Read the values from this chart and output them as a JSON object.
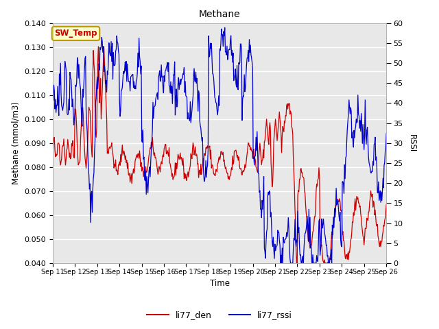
{
  "title": "Methane",
  "ylabel_left": "Methane (mmol/m3)",
  "ylabel_right": "RSSI",
  "xlabel": "Time",
  "ylim_left": [
    0.04,
    0.14
  ],
  "ylim_right": [
    0,
    60
  ],
  "yticks_left": [
    0.04,
    0.05,
    0.06,
    0.07,
    0.08,
    0.09,
    0.1,
    0.11,
    0.12,
    0.13,
    0.14
  ],
  "yticks_right": [
    0,
    5,
    10,
    15,
    20,
    25,
    30,
    35,
    40,
    45,
    50,
    55,
    60
  ],
  "xtick_labels": [
    "Sep 11",
    "Sep 12",
    "Sep 13",
    "Sep 14",
    "Sep 15",
    "Sep 16",
    "Sep 17",
    "Sep 18",
    "Sep 19",
    "Sep 20",
    "Sep 21",
    "Sep 22",
    "Sep 23",
    "Sep 24",
    "Sep 25",
    "Sep 26"
  ],
  "bg_color": "#e8e8e8",
  "grid_color": "#ffffff",
  "line_color_red": "#cc0000",
  "line_color_blue": "#0000cc",
  "legend_label_red": "li77_den",
  "legend_label_blue": "li77_rssi",
  "sw_temp_label": "SW_Temp",
  "sw_temp_bg": "#ffffcc",
  "sw_temp_border": "#bb9900",
  "sw_temp_text_color": "#cc0000",
  "fig_width": 6.4,
  "fig_height": 4.8,
  "dpi": 100
}
